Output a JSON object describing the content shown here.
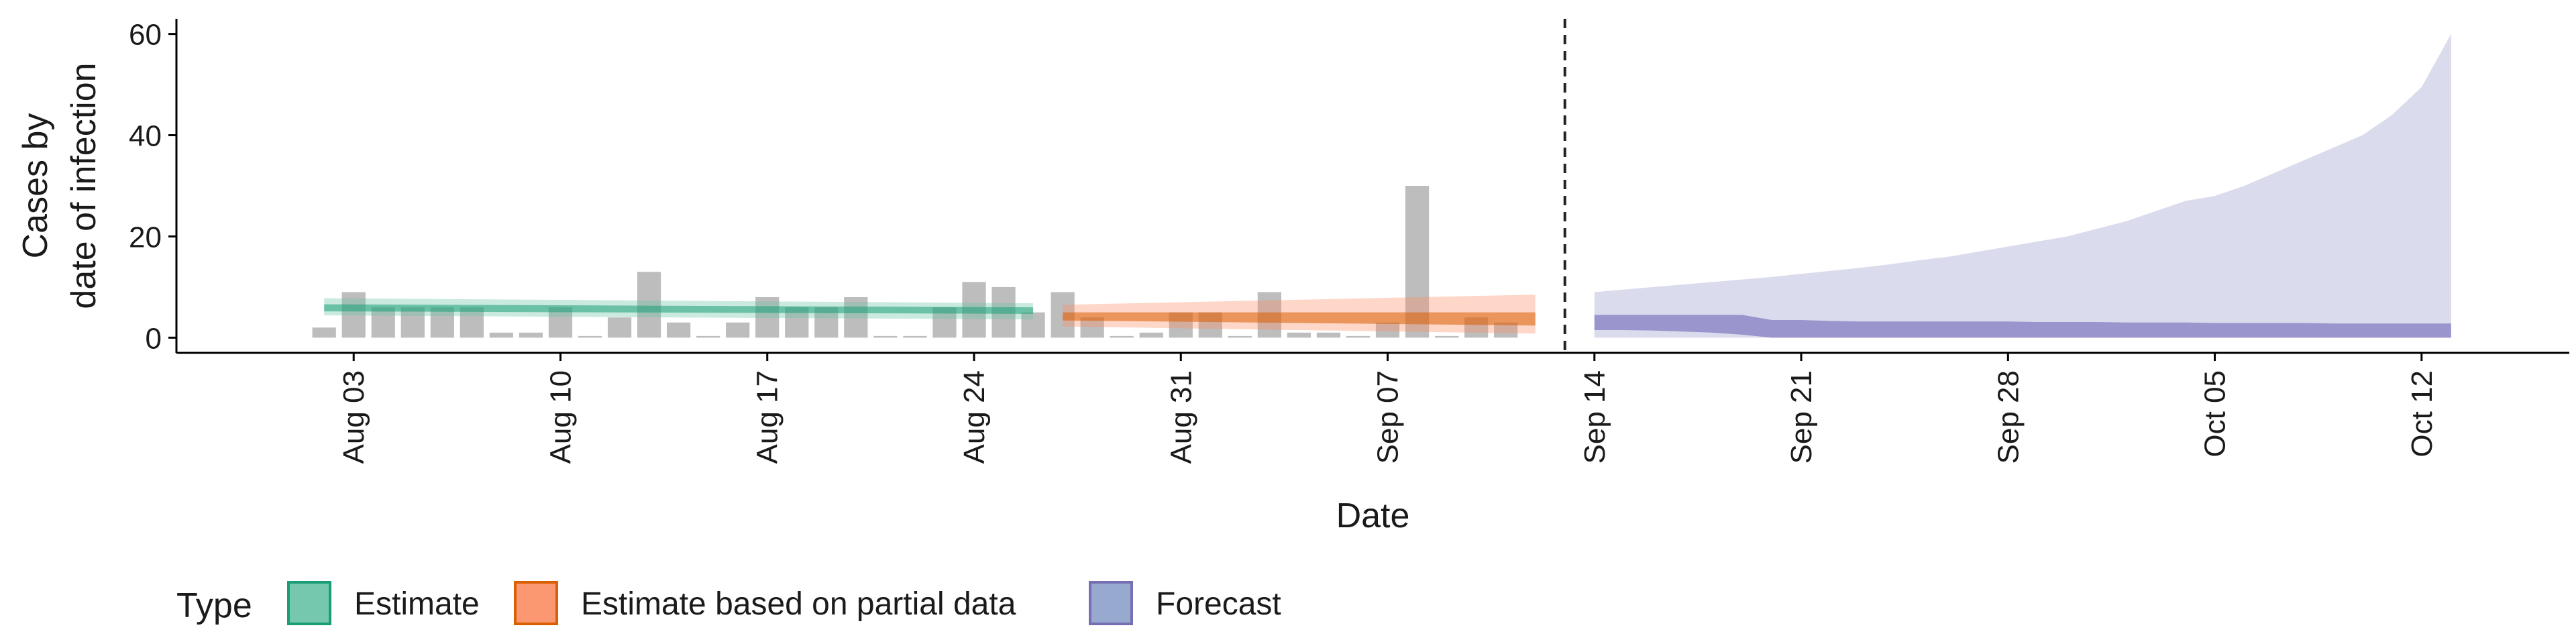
{
  "chart_data": {
    "type": "bar",
    "xlabel": "Date",
    "ylabel": [
      "Cases by",
      "date of infection"
    ],
    "ylim": [
      -3,
      63
    ],
    "yticks": [
      0,
      20,
      40,
      60
    ],
    "date_range": [
      "2020-07-28",
      "2020-10-17"
    ],
    "xticks": [
      {
        "date": "2020-08-03",
        "label": "Aug 03"
      },
      {
        "date": "2020-08-10",
        "label": "Aug 10"
      },
      {
        "date": "2020-08-17",
        "label": "Aug 17"
      },
      {
        "date": "2020-08-24",
        "label": "Aug 24"
      },
      {
        "date": "2020-08-31",
        "label": "Aug 31"
      },
      {
        "date": "2020-09-07",
        "label": "Sep 07"
      },
      {
        "date": "2020-09-14",
        "label": "Sep 14"
      },
      {
        "date": "2020-09-21",
        "label": "Sep 21"
      },
      {
        "date": "2020-09-28",
        "label": "Sep 28"
      },
      {
        "date": "2020-10-05",
        "label": "Oct 05"
      },
      {
        "date": "2020-10-12",
        "label": "Oct 12"
      }
    ],
    "forecast_date": "2020-09-13",
    "grid": false,
    "legend": {
      "placement": "bottom-left",
      "title": "Type",
      "entries": [
        {
          "label": "Estimate",
          "fill": "#66c2a5",
          "stroke": "#1b9e77"
        },
        {
          "label": "Estimate based on partial data",
          "fill": "#fc8d62",
          "stroke": "#d95f02"
        },
        {
          "label": "Forecast",
          "fill": "#8da0cb",
          "stroke": "#7570b3"
        }
      ]
    },
    "bar_color": "#bdbdbd",
    "observed_cases": {
      "start_date": "2020-08-02",
      "values": [
        2,
        9,
        6,
        6,
        6,
        6,
        1,
        1,
        6,
        0,
        4,
        13,
        3,
        0,
        3,
        8,
        6,
        6,
        8,
        0,
        0,
        6,
        11,
        10,
        5,
        9,
        4,
        0,
        1,
        5,
        5,
        0,
        9,
        1,
        1,
        0,
        3,
        30,
        0,
        4,
        3
      ]
    },
    "series": [
      {
        "name": "Estimate",
        "color": "#1b9e77",
        "start_date": "2020-08-02",
        "end_date": "2020-08-26",
        "inner": [
          [
            5.2,
            6.6
          ],
          [
            4.7,
            6.0
          ]
        ],
        "outer": [
          [
            4.4,
            7.8
          ],
          [
            3.6,
            6.8
          ]
        ]
      },
      {
        "name": "Estimate based on partial data",
        "color": "#d95f02",
        "start_date": "2020-08-27",
        "end_date": "2020-09-12",
        "inner": [
          [
            3.4,
            5.0
          ],
          [
            2.4,
            5.0
          ]
        ],
        "outer": [
          [
            2.2,
            6.5
          ],
          [
            0.8,
            8.5
          ]
        ]
      },
      {
        "name": "Forecast",
        "color": "#7570b3",
        "start_date": "2020-09-14",
        "end_date": "2020-10-13",
        "inner_upper": [
          4.5,
          4.5,
          4.5,
          4.5,
          4.5,
          4.5,
          3.5,
          3.5,
          3.3,
          3.2,
          3.2,
          3.2,
          3.2,
          3.2,
          3.2,
          3.1,
          3.1,
          3.1,
          3.0,
          3.0,
          3.0,
          2.9,
          2.9,
          2.9,
          2.9,
          2.8,
          2.8,
          2.8,
          2.8,
          2.8
        ],
        "inner_lower": [
          1.5,
          1.5,
          1.4,
          1.2,
          1.0,
          0.6,
          0,
          0,
          0,
          0,
          0,
          0,
          0,
          0,
          0,
          0,
          0,
          0,
          0,
          0,
          0,
          0,
          0,
          0,
          0,
          0,
          0,
          0,
          0,
          0
        ],
        "outer_upper": [
          9,
          9.5,
          10,
          10.5,
          11,
          11.5,
          12,
          12.6,
          13.2,
          13.8,
          14.5,
          15.3,
          16,
          17,
          18,
          19,
          20,
          21.5,
          23,
          25,
          27,
          28,
          30,
          32.5,
          35,
          37.5,
          40,
          44,
          49.5,
          60
        ],
        "outer_lower": [
          0,
          0,
          0,
          0,
          0,
          0,
          0,
          0,
          0,
          0,
          0,
          0,
          0,
          0,
          0,
          0,
          0,
          0,
          0,
          0,
          0,
          0,
          0,
          0,
          0,
          0,
          0,
          0,
          0,
          0
        ]
      }
    ]
  }
}
